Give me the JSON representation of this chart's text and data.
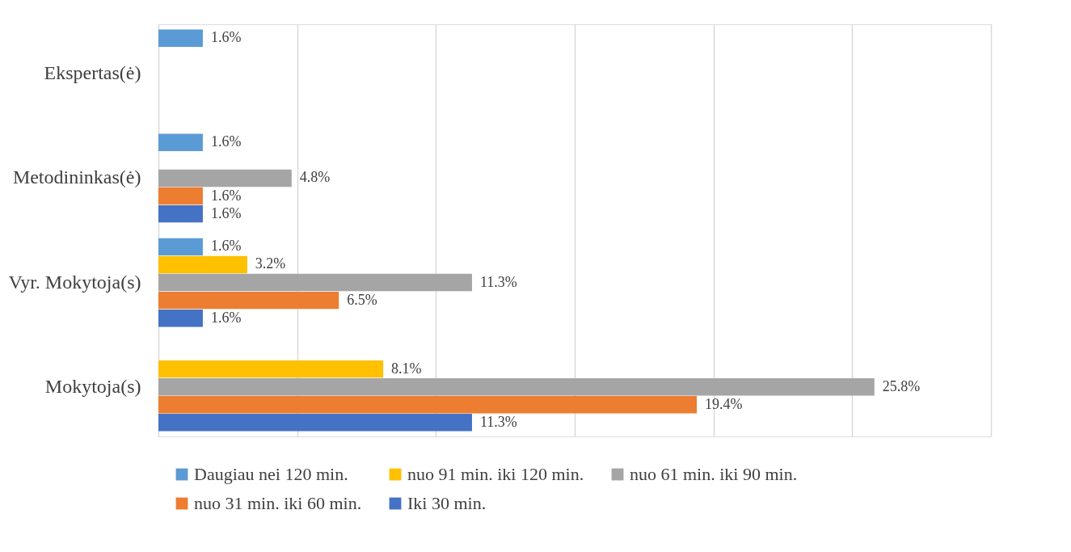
{
  "chart_data": {
    "type": "bar",
    "orientation": "horizontal",
    "categories": [
      "Ekspertas(ė)",
      "Metodininkas(ė)",
      "Vyr. Mokytoja(s)",
      "Mokytoja(s)"
    ],
    "series": [
      {
        "name": "Daugiau nei 120 min.",
        "color": "#5b9bd5",
        "values": [
          1.6,
          1.6,
          1.6,
          null
        ],
        "value_labels": [
          "1.6%",
          "1.6%",
          "1.6%",
          null
        ]
      },
      {
        "name": "nuo 91 min. iki 120 min.",
        "color": "#ffc000",
        "values": [
          null,
          null,
          3.2,
          8.1
        ],
        "value_labels": [
          null,
          null,
          "3.2%",
          "8.1%"
        ]
      },
      {
        "name": "nuo 61 min. iki 90 min.",
        "color": "#a5a5a5",
        "values": [
          null,
          4.8,
          11.3,
          25.8
        ],
        "value_labels": [
          null,
          "4.8%",
          "11.3%",
          "25.8%"
        ]
      },
      {
        "name": "nuo 31 min. iki 60 min.",
        "color": "#ed7d31",
        "values": [
          null,
          1.6,
          6.5,
          19.4
        ],
        "value_labels": [
          null,
          "1.6%",
          "6.5%",
          "19.4%"
        ]
      },
      {
        "name": "Iki 30 min.",
        "color": "#4472c4",
        "values": [
          null,
          1.6,
          1.6,
          11.3
        ],
        "value_labels": [
          null,
          "1.6%",
          "1.6%",
          "11.3%"
        ]
      }
    ],
    "xlim": [
      0,
      30
    ],
    "xticks": [
      {
        "value": 0,
        "label": null
      },
      {
        "value": 5,
        "label": null
      },
      {
        "value": 10,
        "label": null
      },
      {
        "value": 15,
        "label": null
      },
      {
        "value": 20,
        "label": null
      },
      {
        "value": 25,
        "label": null
      },
      {
        "value": 30,
        "label": null
      }
    ],
    "grid": "x",
    "legend": "bottom",
    "tick_labels": "y"
  }
}
